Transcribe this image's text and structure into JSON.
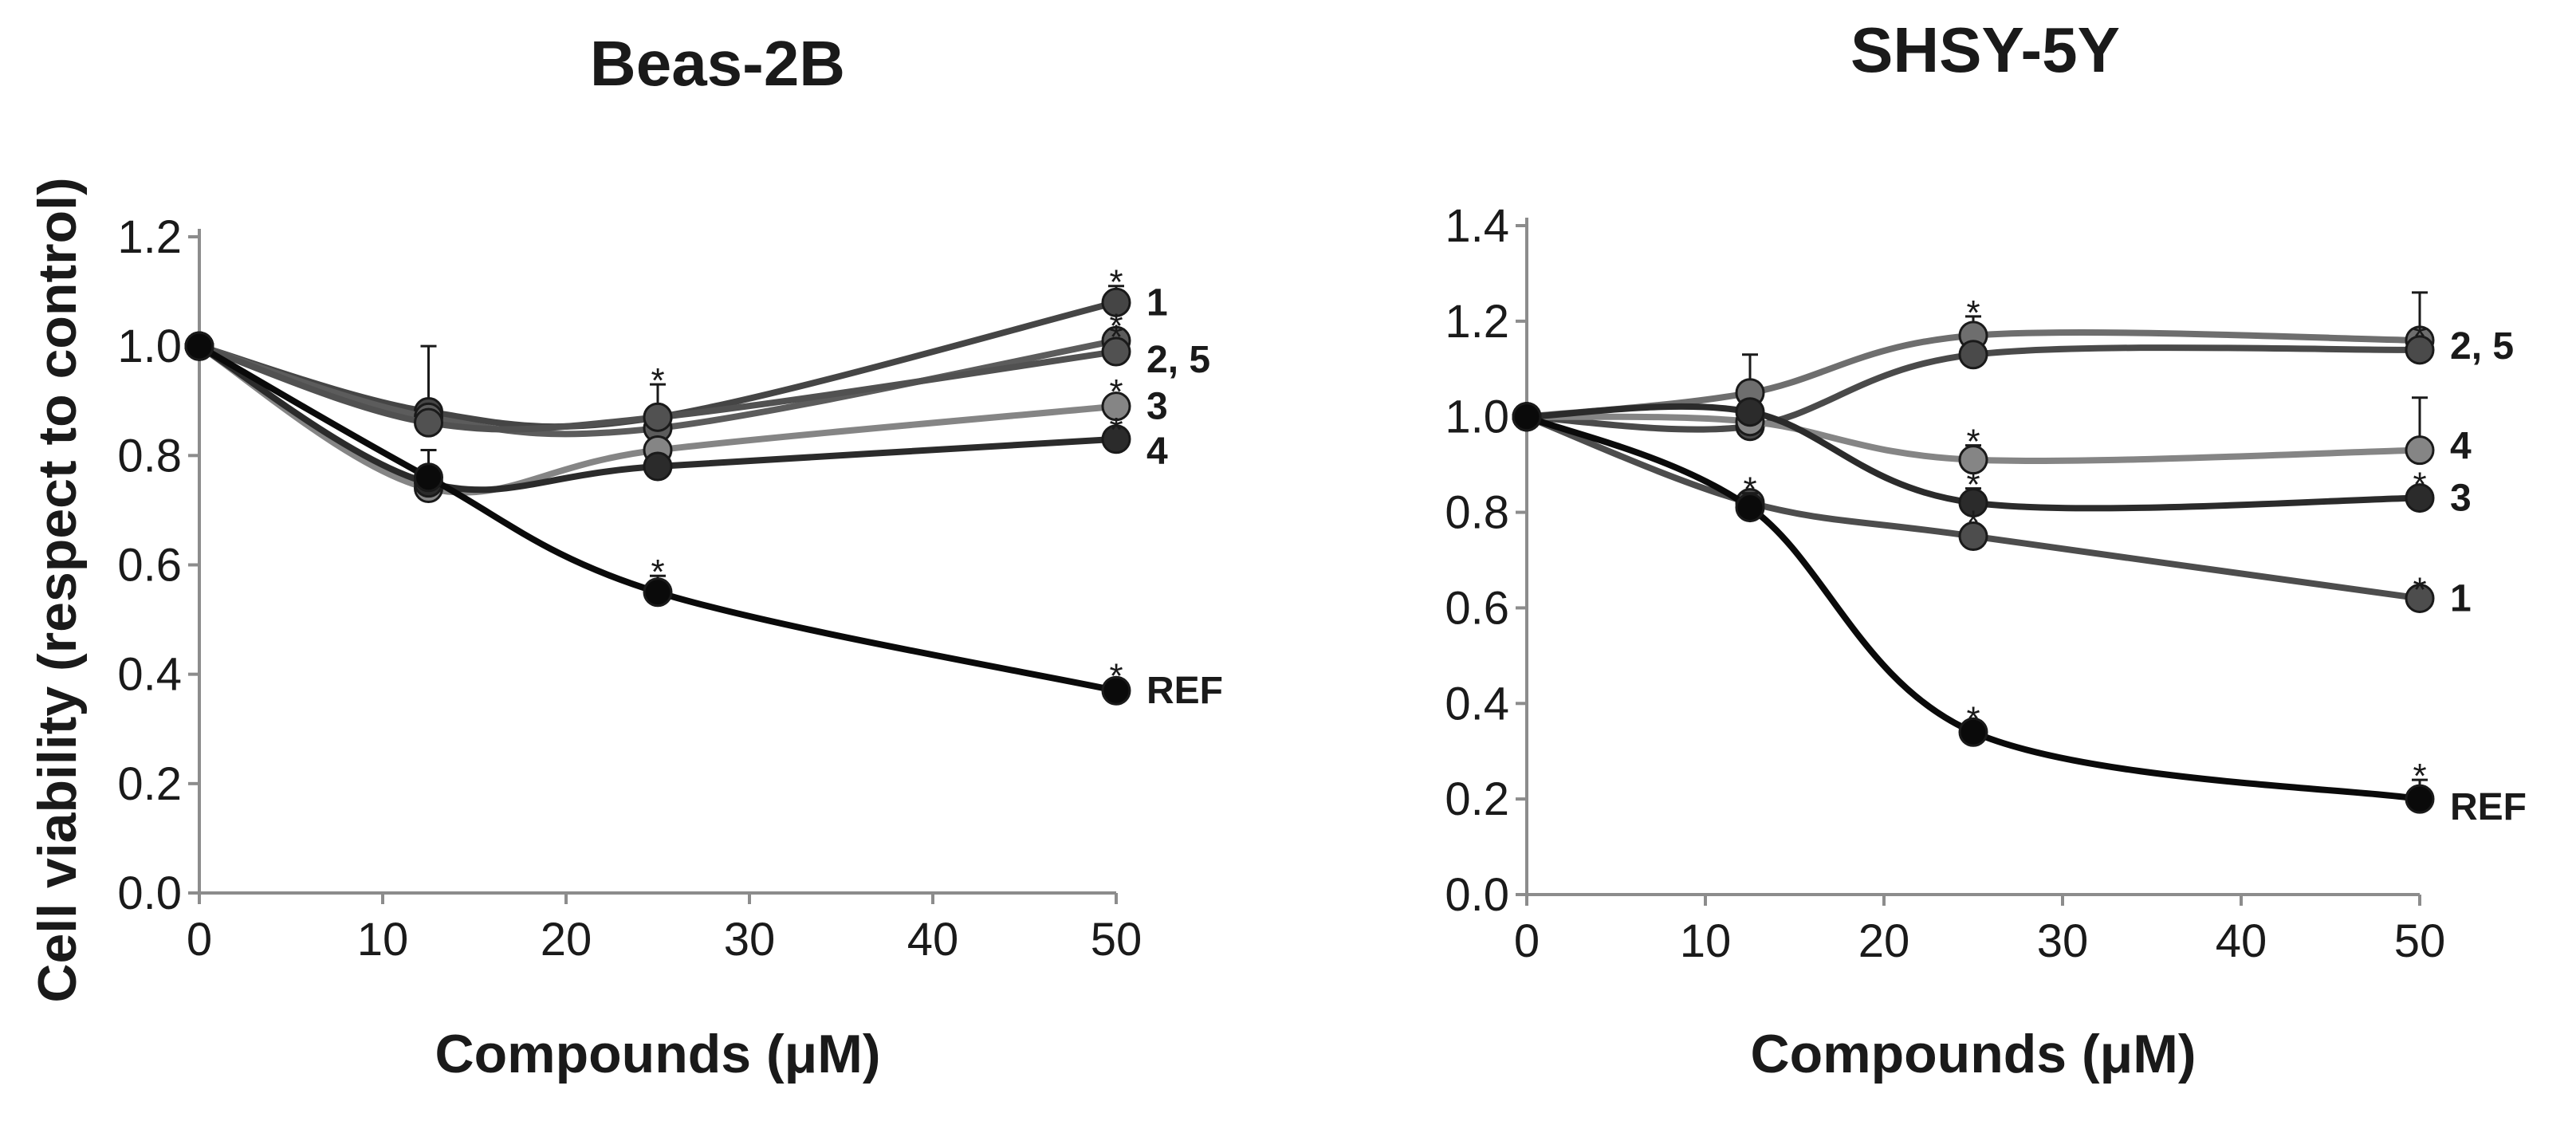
{
  "y_axis_label": "Cell viability (respect to control)",
  "chart_data": [
    {
      "type": "line",
      "title": "Beas-2B",
      "xlabel": "Compounds (μM)",
      "ylabel": "Cell viability (respect to control)",
      "xlim": [
        0,
        50
      ],
      "ylim": [
        0,
        1.2
      ],
      "xticks": [
        0,
        10,
        20,
        30,
        40,
        50
      ],
      "yticks": [
        "0.0",
        "0.2",
        "0.4",
        "0.6",
        "0.8",
        "1.0",
        "1.2"
      ],
      "grid": false,
      "x": [
        0,
        12.5,
        25,
        50
      ],
      "series": [
        {
          "name": "1",
          "color": "#454545",
          "values": [
            1.0,
            0.88,
            0.87,
            1.08
          ],
          "errors": [
            0,
            0.12,
            0.06,
            0.03
          ],
          "stars": [
            25,
            50
          ]
        },
        {
          "name": "2",
          "color": "#5c5c5c",
          "values": [
            1.0,
            0.87,
            0.85,
            1.01
          ],
          "errors": [
            0,
            0.02,
            0.02,
            0.02
          ],
          "stars": [
            50
          ]
        },
        {
          "name": "5",
          "color": "#515151",
          "values": [
            1.0,
            0.86,
            0.87,
            0.99
          ],
          "errors": [
            0,
            0.02,
            0.02,
            0.02
          ],
          "stars": [
            50
          ]
        },
        {
          "name": "3",
          "color": "#858585",
          "values": [
            1.0,
            0.74,
            0.81,
            0.89
          ],
          "errors": [
            0,
            0.02,
            0.02,
            0.02
          ],
          "stars": [
            50
          ]
        },
        {
          "name": "4",
          "color": "#2b2b2b",
          "values": [
            1.0,
            0.75,
            0.78,
            0.83
          ],
          "errors": [
            0,
            0.03,
            0.02,
            0.01
          ],
          "stars": [
            50
          ]
        },
        {
          "name": "REF",
          "color": "#0a0a0a",
          "values": [
            1.0,
            0.76,
            0.55,
            0.37
          ],
          "errors": [
            0,
            0.05,
            0.03,
            0.02
          ],
          "stars": [
            25,
            50
          ]
        }
      ],
      "annotations": [
        {
          "text": "1",
          "series": "1"
        },
        {
          "text": "2, 5",
          "series": "5"
        },
        {
          "text": "3",
          "series": "3"
        },
        {
          "text": "4",
          "series": "4"
        },
        {
          "text": "REF",
          "series": "REF"
        }
      ]
    },
    {
      "type": "line",
      "title": "SHSY-5Y",
      "xlabel": "Compounds (μM)",
      "ylabel": "",
      "xlim": [
        0,
        50
      ],
      "ylim": [
        0,
        1.4
      ],
      "xticks": [
        0,
        10,
        20,
        30,
        40,
        50
      ],
      "yticks": [
        "0.0",
        "0.2",
        "0.4",
        "0.6",
        "0.8",
        "1.0",
        "1.2",
        "1.4"
      ],
      "grid": false,
      "x": [
        0,
        12.5,
        25,
        50
      ],
      "series": [
        {
          "name": "2",
          "color": "#6e6e6e",
          "values": [
            1.0,
            1.05,
            1.17,
            1.16
          ],
          "errors": [
            0,
            0.08,
            0.04,
            0.1
          ],
          "stars": [
            25
          ]
        },
        {
          "name": "5",
          "color": "#4a4a4a",
          "values": [
            1.0,
            0.98,
            1.13,
            1.14
          ],
          "errors": [
            0,
            0.02,
            0.02,
            0.02
          ],
          "stars": [
            50
          ]
        },
        {
          "name": "4",
          "color": "#858585",
          "values": [
            1.0,
            0.99,
            0.91,
            0.93
          ],
          "errors": [
            0,
            0.02,
            0.03,
            0.11
          ],
          "stars": [
            25
          ]
        },
        {
          "name": "3",
          "color": "#2b2b2b",
          "values": [
            1.0,
            1.01,
            0.82,
            0.83
          ],
          "errors": [
            0,
            0.02,
            0.03,
            0.02
          ],
          "stars": [
            25,
            50
          ]
        },
        {
          "name": "1",
          "color": "#4d4d4d",
          "values": [
            1.0,
            0.82,
            0.75,
            0.62
          ],
          "errors": [
            0,
            0.02,
            0.02,
            0.01
          ],
          "stars": [
            12.5,
            25,
            50
          ]
        },
        {
          "name": "REF",
          "color": "#0a0a0a",
          "values": [
            1.0,
            0.81,
            0.34,
            0.2
          ],
          "errors": [
            0,
            0.03,
            0.02,
            0.04
          ],
          "stars": [
            25,
            50
          ]
        }
      ],
      "annotations": [
        {
          "text": "2, 5",
          "series": "5"
        },
        {
          "text": "4",
          "series": "4"
        },
        {
          "text": "3",
          "series": "3"
        },
        {
          "text": "1",
          "series": "1"
        },
        {
          "text": "REF",
          "series": "REF"
        }
      ]
    }
  ]
}
